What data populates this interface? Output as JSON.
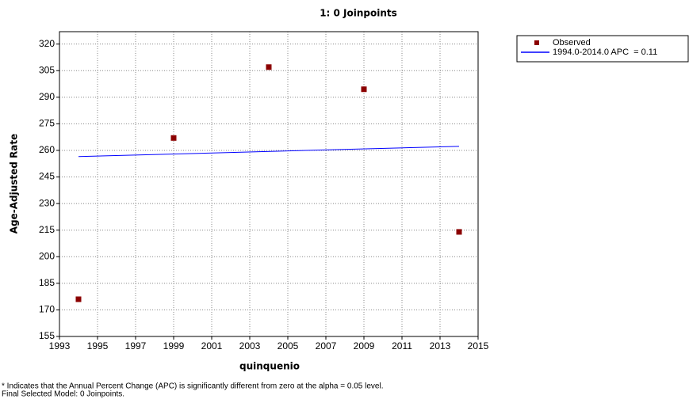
{
  "chart_data": {
    "type": "scatter",
    "title": "1: 0 Joinpoints",
    "x_label": "quinquenio",
    "y_label": "Age-Adjusted Rate",
    "xlim": [
      1993,
      2015
    ],
    "ylim": [
      155,
      327
    ],
    "xticks": [
      1993,
      1995,
      1997,
      1999,
      2001,
      2003,
      2005,
      2007,
      2009,
      2011,
      2013,
      2015
    ],
    "yticks": [
      155,
      170,
      185,
      200,
      215,
      230,
      245,
      260,
      275,
      290,
      305,
      320
    ],
    "grid": true,
    "legend": "outside-right",
    "series": [
      {
        "name": "Observed",
        "color": "#8b0000",
        "mode": "markers",
        "x": [
          1994,
          1999,
          2004,
          2009,
          2014
        ],
        "values": [
          176,
          267,
          307,
          294.5,
          214
        ]
      },
      {
        "name": "1994.0-2014.0 APC  = 0.11",
        "color": "#0000ff",
        "mode": "line",
        "x": [
          1994,
          2014
        ],
        "values": [
          256.5,
          262.3
        ]
      }
    ],
    "notes": [
      "* Indicates that the Annual Percent Change (APC) is significantly different from zero at the alpha = 0.05 level.",
      "Final Selected Model: 0 Joinpoints."
    ]
  }
}
